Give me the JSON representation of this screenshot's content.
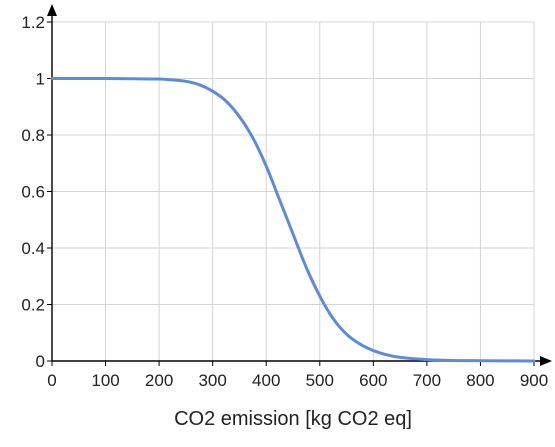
{
  "chart_data": {
    "type": "line",
    "title": "",
    "xlabel": "CO2 emission [kg CO2 eq]",
    "ylabel": "",
    "xlim": [
      0,
      900
    ],
    "ylim": [
      0,
      1.2
    ],
    "x_ticks": [
      "0",
      "100",
      "200",
      "300",
      "400",
      "500",
      "600",
      "700",
      "800",
      "900"
    ],
    "y_ticks": [
      "0",
      "0.2",
      "0.4",
      "0.6",
      "0.8",
      "1",
      "1.2"
    ],
    "grid": true,
    "legend": "none",
    "series": [
      {
        "color": "#5b8bd9",
        "x": [
          0,
          50,
          100,
          150,
          200,
          225,
          250,
          275,
          300,
          325,
          350,
          375,
          400,
          425,
          450,
          475,
          500,
          525,
          550,
          575,
          600,
          625,
          650,
          700,
          750,
          800,
          850,
          900
        ],
        "y": [
          1.0,
          1.0,
          1.0,
          0.999,
          0.998,
          0.995,
          0.99,
          0.978,
          0.955,
          0.92,
          0.865,
          0.79,
          0.69,
          0.57,
          0.45,
          0.33,
          0.23,
          0.15,
          0.095,
          0.06,
          0.037,
          0.022,
          0.013,
          0.005,
          0.002,
          0.001,
          0.0005,
          0.0002
        ]
      }
    ]
  }
}
